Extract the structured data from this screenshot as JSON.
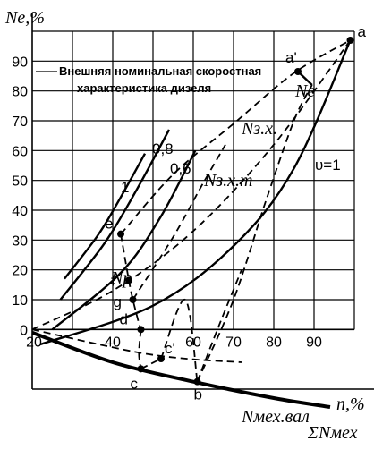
{
  "chart_data": {
    "type": "line",
    "y_title": "Ne,%",
    "x_title": "n,%",
    "x_ticks": [
      "20",
      "40",
      "60",
      "70",
      "80",
      "90"
    ],
    "y_ticks": [
      "0",
      "10",
      "20",
      "30",
      "40",
      "50",
      "60",
      "70",
      "80",
      "90"
    ],
    "xlim": [
      20,
      100
    ],
    "ylim": [
      -20,
      100
    ],
    "grid": true,
    "annotation": "Внешняя номинальная скоростная характеристика дизеля",
    "annotation_lines": [
      "Внешняя номинальная скоростная",
      "характеристика дизеля"
    ],
    "point_labels": {
      "a": "a",
      "a_prime": "a'",
      "b": "b",
      "c": "c",
      "c_prime": "c'",
      "d": "d",
      "e": "e",
      "f": "f",
      "g": "g"
    },
    "curve_labels": {
      "ne": "Ne",
      "nzx": "Nз.х.",
      "nzxm": "Nз.х.т",
      "np": "Np",
      "nmech_val": "Nмех.вал",
      "sum_nmech": "ΣNмех",
      "v1": "υ=1",
      "r08": "0,8",
      "r06": "0,6",
      "r1": "1"
    },
    "points": {
      "a": [
        99,
        97
      ],
      "a_prime": [
        86,
        86.5
      ],
      "b": [
        61,
        -17.5
      ],
      "c": [
        47,
        -13.2
      ],
      "c_prime": [
        52,
        -9.8
      ],
      "d": [
        47,
        0
      ],
      "e": [
        42,
        32
      ],
      "f": [
        44,
        16.5
      ],
      "g": [
        45,
        10
      ]
    },
    "series": [
      {
        "id": "external",
        "style": "dash",
        "x": [
          42,
          55,
          70,
          85,
          99
        ],
        "y": [
          32,
          52,
          69,
          86,
          97
        ]
      },
      {
        "id": "nzx",
        "style": "dash",
        "x": [
          20,
          40,
          60,
          80,
          99
        ],
        "y": [
          0,
          13,
          33,
          62,
          97
        ]
      },
      {
        "id": "nzxm",
        "style": "dash",
        "x": [
          45,
          55,
          62,
          68
        ],
        "y": [
          10,
          31,
          48,
          62
        ]
      },
      {
        "id": "ne",
        "style": "dash",
        "x": [
          61,
          70,
          78,
          85,
          89.5
        ],
        "y": [
          -17.5,
          10,
          43,
          70,
          82
        ]
      },
      {
        "id": "v1",
        "style": "solid",
        "x": [
          22,
          50,
          70,
          85,
          99
        ],
        "y": [
          -5,
          8,
          28,
          54,
          97
        ]
      },
      {
        "id": "fan_06",
        "style": "solid",
        "x": [
          25,
          42,
          52,
          60.5
        ],
        "y": [
          0,
          19,
          38,
          60
        ]
      },
      {
        "id": "fan_08",
        "style": "solid",
        "x": [
          27,
          38,
          46,
          54
        ],
        "y": [
          10,
          29,
          47,
          67
        ]
      },
      {
        "id": "fan_1",
        "style": "solid",
        "x": [
          28,
          36,
          41,
          48
        ],
        "y": [
          17,
          31,
          42,
          59
        ]
      },
      {
        "id": "ne_aprime",
        "style": "solid",
        "x": [
          86,
          89.5
        ],
        "y": [
          86.5,
          82
        ]
      },
      {
        "id": "sum_nmech",
        "style": "thick",
        "x": [
          20,
          40,
          60,
          80,
          94
        ],
        "y": [
          -1,
          -11,
          -17.5,
          -23,
          -26
        ]
      },
      {
        "id": "nmech_val",
        "style": "dash",
        "x": [
          20,
          40,
          50,
          60,
          72
        ],
        "y": [
          0,
          -6,
          -8.5,
          -10,
          -11
        ]
      },
      {
        "id": "path_e_d",
        "style": "dash",
        "x": [
          42,
          44,
          45,
          46.5,
          47
        ],
        "y": [
          32,
          16.5,
          10,
          2,
          0
        ]
      },
      {
        "id": "path_d_c",
        "style": "dash",
        "x": [
          47,
          46.5,
          47
        ],
        "y": [
          0,
          -8,
          -13.2
        ]
      },
      {
        "id": "path_c_cprime",
        "style": "dash",
        "x": [
          47,
          52
        ],
        "y": [
          -13.2,
          -9.8
        ]
      },
      {
        "id": "path_nzxm_low",
        "style": "dash",
        "x": [
          52,
          58,
          61
        ],
        "y": [
          -9.8,
          10,
          -17.5
        ]
      },
      {
        "id": "path_b_ne",
        "style": "dash",
        "x": [
          61,
          66,
          72
        ],
        "y": [
          -17.5,
          0,
          20
        ]
      }
    ]
  }
}
